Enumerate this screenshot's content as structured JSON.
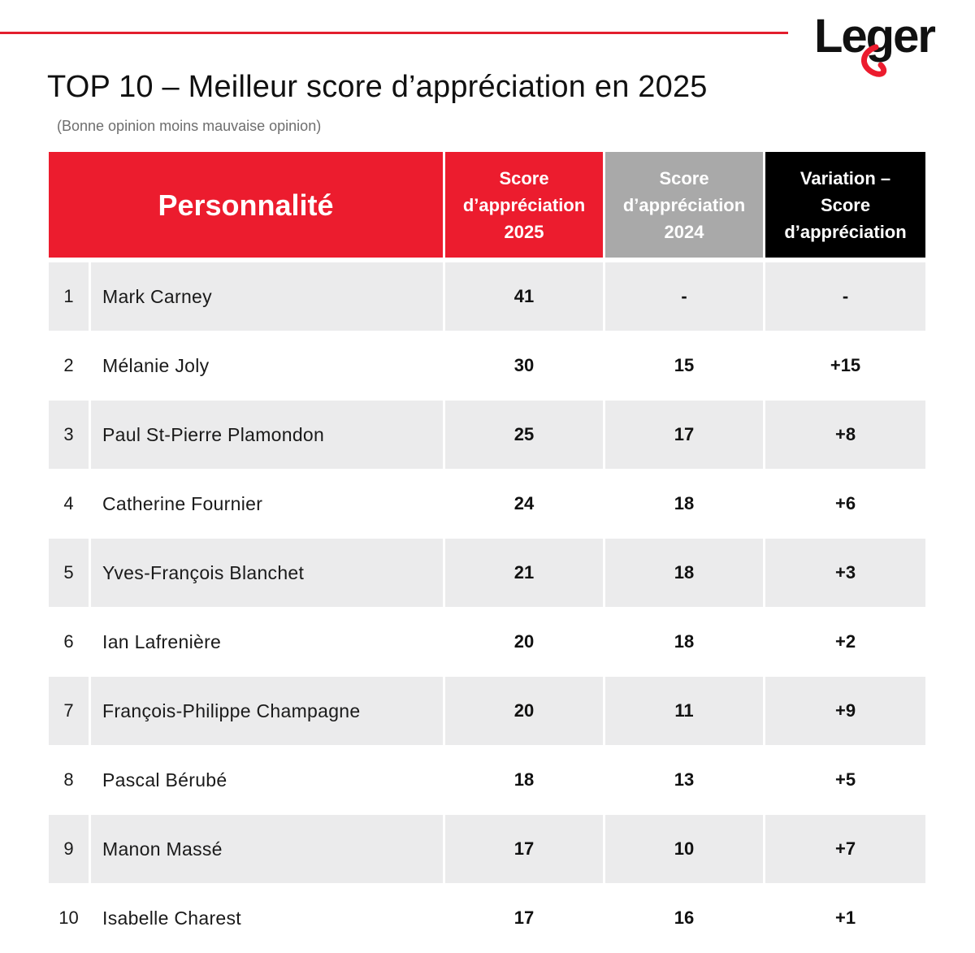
{
  "brand": {
    "logo_text": "Leger",
    "accent_color": "#ec1c2e"
  },
  "title": "TOP 10 – Meilleur score d’appréciation en 2025",
  "subtitle": "(Bonne opinion moins mauvaise opinion)",
  "table": {
    "headers": {
      "personnalite": "Personnalité",
      "score_2025": [
        "Score",
        "d’appréciation",
        "2025"
      ],
      "score_2024": [
        "Score",
        "d’appréciation",
        "2024"
      ],
      "variation": [
        "Variation –",
        "Score",
        "d’appréciation"
      ]
    },
    "colors": {
      "header_2025": "#ec1c2e",
      "header_2024": "#a9a9a9",
      "header_variation": "#000000",
      "row_shade": "#ebebec"
    },
    "rows": [
      {
        "rank": "1",
        "name": "Mark Carney",
        "score_2025": "41",
        "score_2024": "-",
        "variation": "-"
      },
      {
        "rank": "2",
        "name": "Mélanie Joly",
        "score_2025": "30",
        "score_2024": "15",
        "variation": "+15"
      },
      {
        "rank": "3",
        "name": "Paul St-Pierre Plamondon",
        "score_2025": "25",
        "score_2024": "17",
        "variation": "+8"
      },
      {
        "rank": "4",
        "name": "Catherine Fournier",
        "score_2025": "24",
        "score_2024": "18",
        "variation": "+6"
      },
      {
        "rank": "5",
        "name": "Yves-François Blanchet",
        "score_2025": "21",
        "score_2024": "18",
        "variation": "+3"
      },
      {
        "rank": "6",
        "name": "Ian Lafrenière",
        "score_2025": "20",
        "score_2024": "18",
        "variation": "+2"
      },
      {
        "rank": "7",
        "name": "François-Philippe Champagne",
        "score_2025": "20",
        "score_2024": "11",
        "variation": "+9"
      },
      {
        "rank": "8",
        "name": "Pascal Bérubé",
        "score_2025": "18",
        "score_2024": "13",
        "variation": "+5"
      },
      {
        "rank": "9",
        "name": "Manon Massé",
        "score_2025": "17",
        "score_2024": "10",
        "variation": "+7"
      },
      {
        "rank": "10",
        "name": "Isabelle Charest",
        "score_2025": "17",
        "score_2024": "16",
        "variation": "+1"
      }
    ]
  },
  "chart_data": {
    "type": "table",
    "title": "TOP 10 – Meilleur score d’appréciation en 2025",
    "subtitle": "(Bonne opinion moins mauvaise opinion)",
    "columns": [
      "Personnalité",
      "Score d’appréciation 2025",
      "Score d’appréciation 2024",
      "Variation – Score d’appréciation"
    ],
    "rows": [
      [
        "Mark Carney",
        41,
        null,
        null
      ],
      [
        "Mélanie Joly",
        30,
        15,
        15
      ],
      [
        "Paul St-Pierre Plamondon",
        25,
        17,
        8
      ],
      [
        "Catherine Fournier",
        24,
        18,
        6
      ],
      [
        "Yves-François Blanchet",
        21,
        18,
        3
      ],
      [
        "Ian Lafrenière",
        20,
        18,
        2
      ],
      [
        "François-Philippe Champagne",
        20,
        11,
        9
      ],
      [
        "Pascal Bérubé",
        18,
        13,
        5
      ],
      [
        "Manon Massé",
        17,
        10,
        7
      ],
      [
        "Isabelle Charest",
        17,
        16,
        1
      ]
    ]
  }
}
